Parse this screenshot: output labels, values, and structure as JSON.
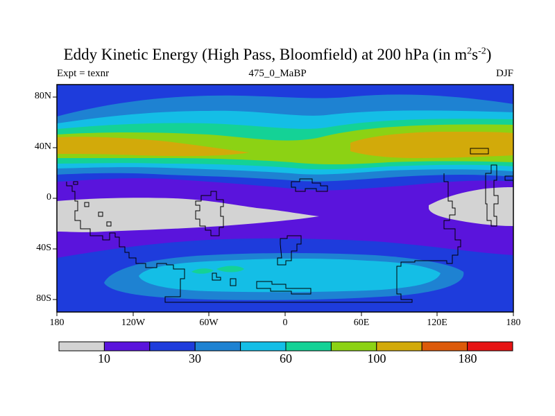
{
  "title": {
    "main": "Eddy Kinetic Energy (High Pass, Bloomfield) at 200 hPa (in m",
    "sup1": "2",
    "mid": "s",
    "sup2": "-2",
    "end": ")"
  },
  "subtitle": {
    "left": "Expt = texnr",
    "center": "475_0_MaBP",
    "right": "DJF"
  },
  "axes": {
    "y_ticks": [
      "80N",
      "40N",
      "0",
      "40S",
      "80S"
    ],
    "x_ticks": [
      "180",
      "120W",
      "60W",
      "0",
      "60E",
      "120E",
      "180"
    ]
  },
  "colorbar": {
    "colors": [
      "#d3d3d3",
      "#5a14dc",
      "#1e3cdc",
      "#1e82d2",
      "#14bee6",
      "#14d296",
      "#8cd214",
      "#d2aa0a",
      "#dc5a0a",
      "#e61414"
    ],
    "labels": [
      "10",
      "30",
      "60",
      "100",
      "180"
    ]
  }
}
